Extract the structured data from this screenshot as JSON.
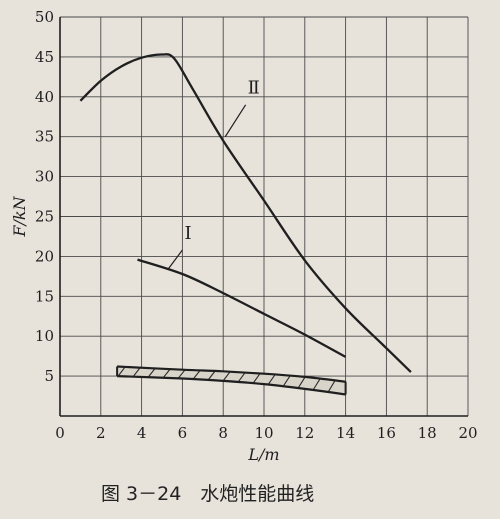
{
  "chart_data": {
    "type": "line",
    "x_axis": {
      "label": "L/m",
      "ticks": [
        "0",
        "2",
        "4",
        "6",
        "8",
        "10",
        "12",
        "14",
        "16",
        "18",
        "20"
      ],
      "range": [
        0,
        20
      ]
    },
    "y_axis": {
      "label": "F/kN",
      "ticks": [
        "5",
        "10",
        "15",
        "20",
        "25",
        "30",
        "35",
        "40",
        "45",
        "50"
      ],
      "range": [
        0,
        50
      ]
    },
    "grid": true,
    "series": [
      {
        "name": "Ⅱ",
        "x": [
          1.0,
          2.0,
          3.0,
          4.0,
          5.0,
          5.6,
          6.5,
          8.0,
          10.0,
          12.0,
          14.0,
          16.0,
          17.2
        ],
        "y": [
          39.5,
          42.0,
          43.8,
          44.9,
          45.3,
          44.8,
          41.0,
          34.5,
          27.0,
          19.5,
          13.5,
          8.5,
          5.5
        ]
      },
      {
        "name": "Ⅰ",
        "x": [
          3.8,
          6.0,
          8.0,
          10.0,
          12.0,
          14.0
        ],
        "y": [
          19.6,
          17.8,
          15.4,
          12.8,
          10.2,
          7.4
        ]
      },
      {
        "name": "",
        "x": [
          2.8,
          6.0,
          8.0,
          10.0,
          12.0,
          14.0
        ],
        "y": [
          6.2,
          5.8,
          5.6,
          5.3,
          4.9,
          4.3
        ]
      },
      {
        "name": "",
        "x": [
          2.8,
          6.0,
          8.0,
          10.0,
          12.0,
          14.0
        ],
        "y": [
          5.0,
          4.7,
          4.4,
          4.0,
          3.4,
          2.7
        ]
      }
    ],
    "curve_labels": [
      "Ⅱ",
      "Ⅰ"
    ],
    "caption": "图 3－24　水炮性能曲线"
  }
}
